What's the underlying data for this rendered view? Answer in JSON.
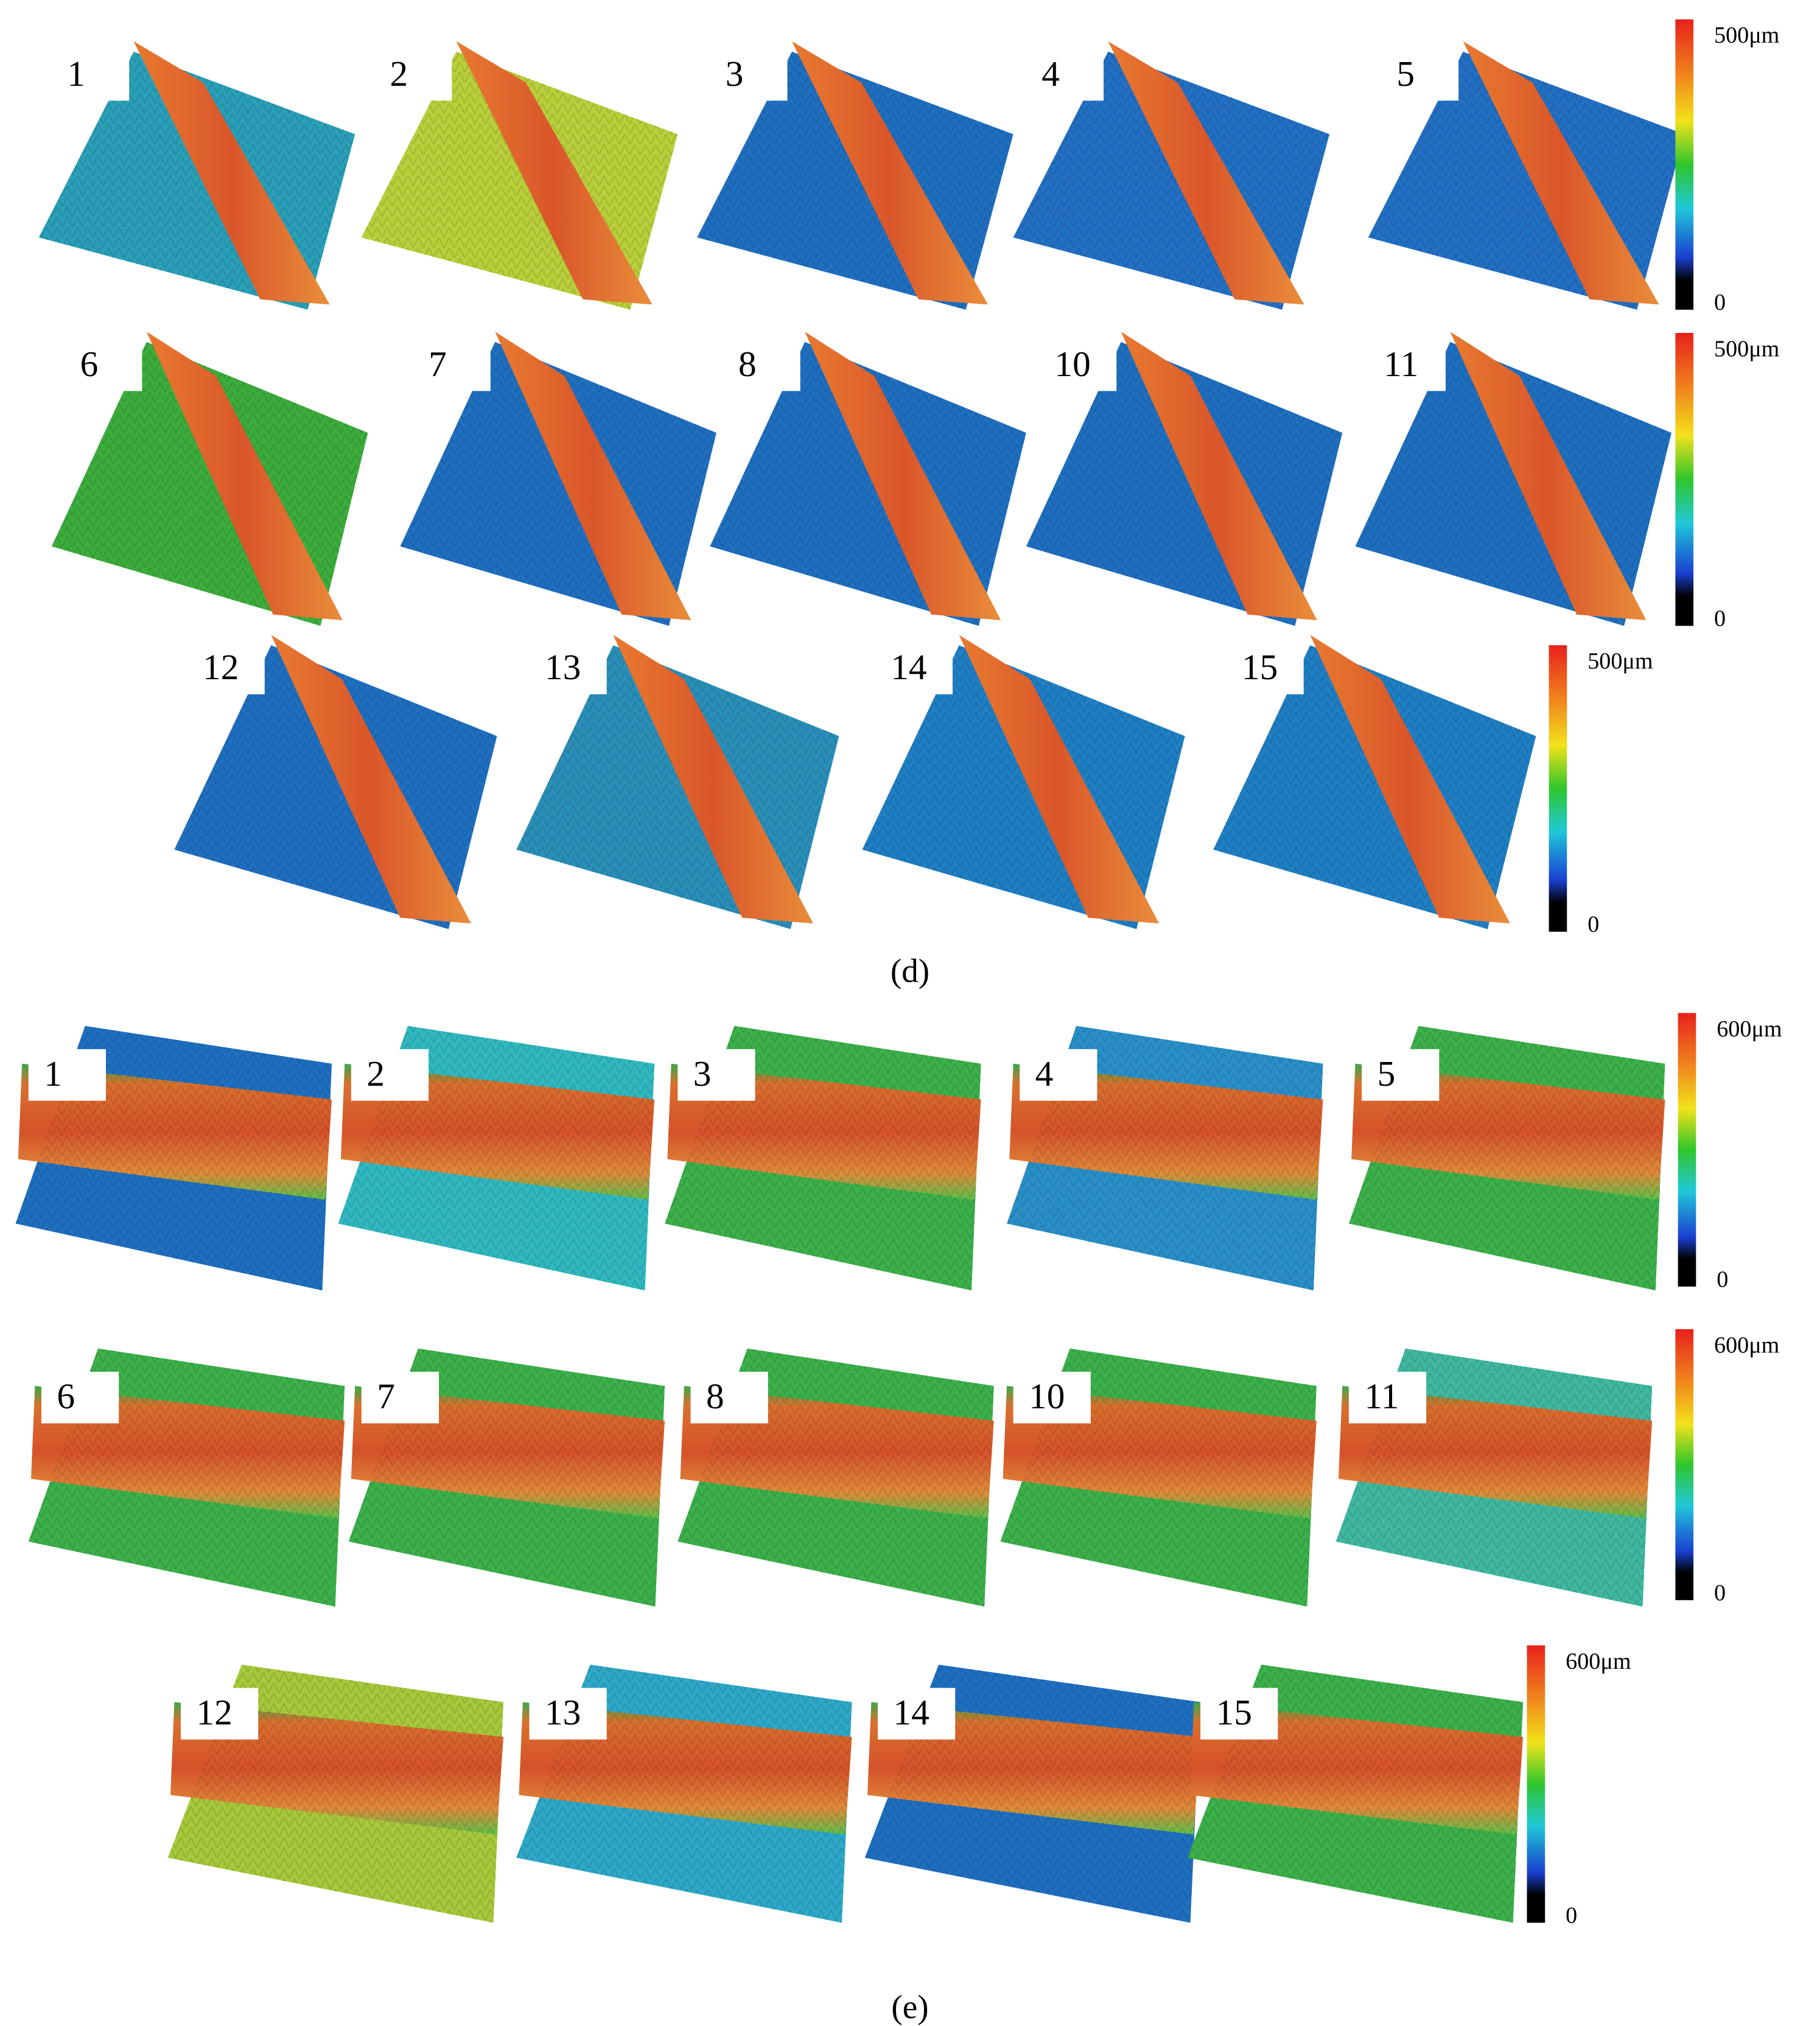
{
  "panels": [
    {
      "caption": "(d)",
      "rows": [
        {
          "labels": [
            "1",
            "2",
            "3",
            "4",
            "5"
          ],
          "scale": {
            "max": "500μm",
            "min": "0"
          }
        },
        {
          "labels": [
            "6",
            "7",
            "8",
            "10",
            "11"
          ],
          "scale": {
            "max": "500μm",
            "min": "0"
          }
        },
        {
          "labels": [
            "12",
            "13",
            "14",
            "15"
          ],
          "scale": {
            "max": "500μm",
            "min": "0"
          }
        }
      ]
    },
    {
      "caption": "(e)",
      "rows": [
        {
          "labels": [
            "1",
            "2",
            "3",
            "4",
            "5"
          ],
          "scale": {
            "max": "600μm",
            "min": "0"
          }
        },
        {
          "labels": [
            "6",
            "7",
            "8",
            "10",
            "11"
          ],
          "scale": {
            "max": "600μm",
            "min": "0"
          }
        },
        {
          "labels": [
            "12",
            "13",
            "14",
            "15"
          ],
          "scale": {
            "max": "600μm",
            "min": "0"
          }
        }
      ]
    }
  ]
}
